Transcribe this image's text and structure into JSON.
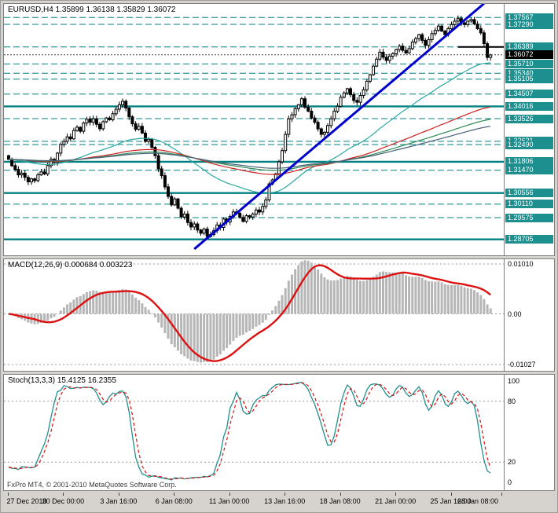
{
  "window": {
    "background": "#d6d3ce",
    "panel_background": "#ffffff",
    "accent_teal": "#008080",
    "trend_blue": "#0000cd",
    "signal_red": "#dd1111"
  },
  "footer": {
    "copyright": "FxPro MT4, © 2001-2010 MetaQuotes Software Corp."
  },
  "chart_data": [
    {
      "type": "candlestick",
      "title": "EURUSD,H4 1.35899 1.36138 1.35829 1.36072",
      "symbol": "EURUSD",
      "timeframe": "H4",
      "quote": {
        "open": "1.35899",
        "high": "1.36138",
        "low": "1.35829",
        "close": "1.36072"
      },
      "ylim": [
        1.2832,
        1.3798
      ],
      "x_tick_labels": [
        "27 Dec 2010",
        "30 Dec 00:00",
        "3 Jan 16:00",
        "6 Jan 08:00",
        "11 Jan 00:00",
        "13 Jan 16:00",
        "18 Jan 08:00",
        "21 Jan 00:00",
        "25 Jan 16:00",
        "28 Jan 08:00"
      ],
      "x_tick_bars": [
        0,
        17,
        34,
        51,
        68,
        85,
        102,
        119,
        136,
        153
      ],
      "first_open": 1.3205,
      "wick": 0.0013,
      "closes": [
        1.319,
        1.3165,
        1.315,
        1.3128,
        1.3135,
        1.3118,
        1.31,
        1.3112,
        1.3105,
        1.3128,
        1.314,
        1.3132,
        1.3165,
        1.319,
        1.3178,
        1.3215,
        1.325,
        1.3262,
        1.328,
        1.3272,
        1.3305,
        1.3318,
        1.3302,
        1.3335,
        1.335,
        1.3338,
        1.3352,
        1.333,
        1.3312,
        1.334,
        1.3355,
        1.3348,
        1.3372,
        1.339,
        1.3408,
        1.3422,
        1.3395,
        1.336,
        1.3332,
        1.331,
        1.3322,
        1.3295,
        1.3262,
        1.327,
        1.3238,
        1.3205,
        1.3152,
        1.3125,
        1.308,
        1.3042,
        1.3008,
        1.3032,
        1.2995,
        1.296,
        1.2972,
        1.2938,
        1.292,
        1.2932,
        1.2908,
        1.2895,
        1.2912,
        1.2882,
        1.289,
        1.2905,
        1.2928,
        1.2918,
        1.2952,
        1.294,
        1.2962,
        1.298,
        1.2975,
        1.2958,
        1.2942,
        1.2965,
        1.296,
        1.2972,
        1.2988,
        1.298,
        1.3002,
        1.3028,
        1.3092,
        1.3108,
        1.3132,
        1.318,
        1.3225,
        1.329,
        1.3352,
        1.3368,
        1.3392,
        1.3408,
        1.3432,
        1.3398,
        1.3382,
        1.3355,
        1.3338,
        1.3312,
        1.329,
        1.3298,
        1.3325,
        1.3352,
        1.3382,
        1.3402,
        1.3438,
        1.3455,
        1.3472,
        1.3448,
        1.3425,
        1.3418,
        1.3445,
        1.3468,
        1.3502,
        1.3528,
        1.3562,
        1.359,
        1.3618,
        1.3598,
        1.3585,
        1.3602,
        1.3612,
        1.3628,
        1.3642,
        1.3625,
        1.3615,
        1.3632,
        1.3658,
        1.3672,
        1.3688,
        1.3665,
        1.3645,
        1.3668,
        1.3692,
        1.3705,
        1.3722,
        1.3702,
        1.3688,
        1.3712,
        1.3728,
        1.3742,
        1.3752,
        1.3735,
        1.3728,
        1.3742,
        1.3748,
        1.373,
        1.3712,
        1.3695,
        1.3652,
        1.3597,
        1.3607
      ],
      "candle_up_fill": "#ffffff",
      "candle_down_fill": "#000000",
      "candle_outline": "#000000",
      "moving_averages": [
        {
          "label": "ma-fast-teal",
          "period": 55,
          "color": "#2aa8a0"
        },
        {
          "label": "ma-mid-red",
          "period": 144,
          "color": "#cc2020"
        },
        {
          "label": "ma-slow-green",
          "period": 200,
          "color": "#2e8b57"
        },
        {
          "label": "ma-slowest-slate",
          "period": 250,
          "color": "#4a617a"
        }
      ],
      "support_resistance": {
        "color": "#008080",
        "solid_levels": [
          1.34016,
          1.31806,
          1.30556,
          1.28705
        ],
        "dashed_levels": [
          1.37567,
          1.3729,
          1.36389,
          1.3571,
          1.3534,
          1.35105,
          1.34507,
          1.33526,
          1.32621,
          1.3249,
          1.3147,
          1.3011,
          1.29575
        ]
      },
      "trendline": {
        "bar1": 57,
        "price1": 1.2832,
        "bar2": 146,
        "price2": 1.3812,
        "color": "#0000cd",
        "width": 3
      },
      "breakout_segment": {
        "price": 1.3639,
        "bar1": 138,
        "bar2": 153,
        "color": "#000000",
        "width": 2
      },
      "current_price": "1.36072",
      "price_axis_labels": [
        "1.37567",
        "1.37290",
        "1.36389",
        "1.36072",
        "1.35710",
        "1.35340",
        "1.35105",
        "1.34507",
        "1.34016",
        "1.33526",
        "1.32621",
        "1.32490",
        "1.31806",
        "1.31470",
        "1.30556",
        "1.30110",
        "1.29575",
        "1.28705"
      ]
    },
    {
      "type": "macd-histogram",
      "title": "MACD(12,26,9) 0.000684 0.003223",
      "params": {
        "fast_ema": 12,
        "slow_ema": 26,
        "signal_sma": 9
      },
      "display_values": [
        "0.000684",
        "0.003223"
      ],
      "ylim": [
        -0.01027,
        0.0101
      ],
      "axis_labels": [
        "0.01010",
        "0.00",
        "-0.01027"
      ],
      "level_lines": [
        0.0101,
        0,
        -0.01027
      ],
      "histogram_color": "#b6b6b6",
      "signal_color": "#dd1111"
    },
    {
      "type": "stochastic",
      "title": "Stoch(13,3,3) 15.4125 16.2355",
      "params": {
        "k_period": 13,
        "slowing": 3,
        "d_period": 3
      },
      "display_values": [
        "15.4125",
        "16.2355"
      ],
      "ylim": [
        0,
        100
      ],
      "axis_labels": [
        "100",
        "80",
        "20",
        "0"
      ],
      "level_lines": [
        80,
        20
      ],
      "k_color": "#20908c",
      "d_color": "#dd1111"
    }
  ]
}
